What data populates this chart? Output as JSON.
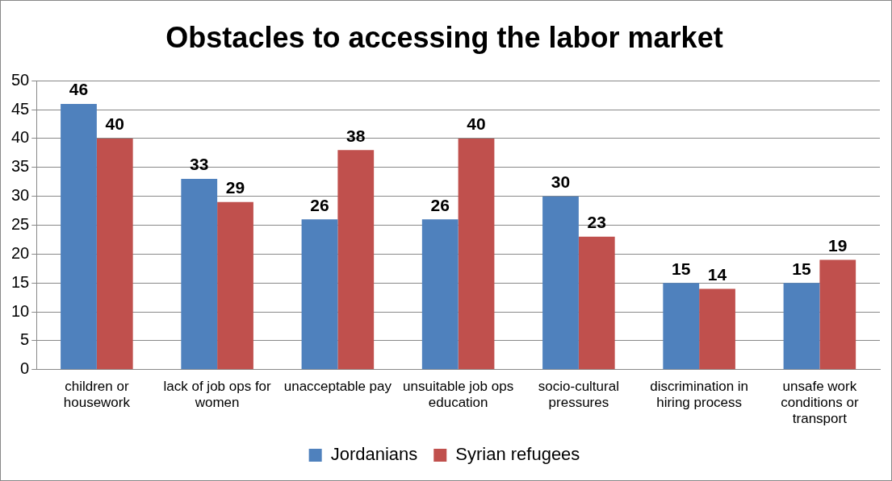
{
  "chart_data": {
    "type": "bar",
    "title": "Obstacles to accessing the labor market",
    "categories": [
      "children or housework",
      "lack of job ops for women",
      "unacceptable pay",
      "unsuitable job ops education",
      "socio-cultural pressures",
      "discrimination in hiring process",
      "unsafe work conditions or transport"
    ],
    "series": [
      {
        "name": "Jordanians",
        "color": "#4f81bd",
        "values": [
          46,
          33,
          26,
          26,
          30,
          15,
          15
        ]
      },
      {
        "name": "Syrian refugees",
        "color": "#c0504d",
        "values": [
          40,
          29,
          38,
          40,
          23,
          14,
          19
        ]
      }
    ],
    "ylim": [
      0,
      50
    ],
    "yticks": [
      0,
      5,
      10,
      15,
      20,
      25,
      30,
      35,
      40,
      45,
      50
    ],
    "grid": "y",
    "legend": "bottom",
    "data_labels": true
  }
}
